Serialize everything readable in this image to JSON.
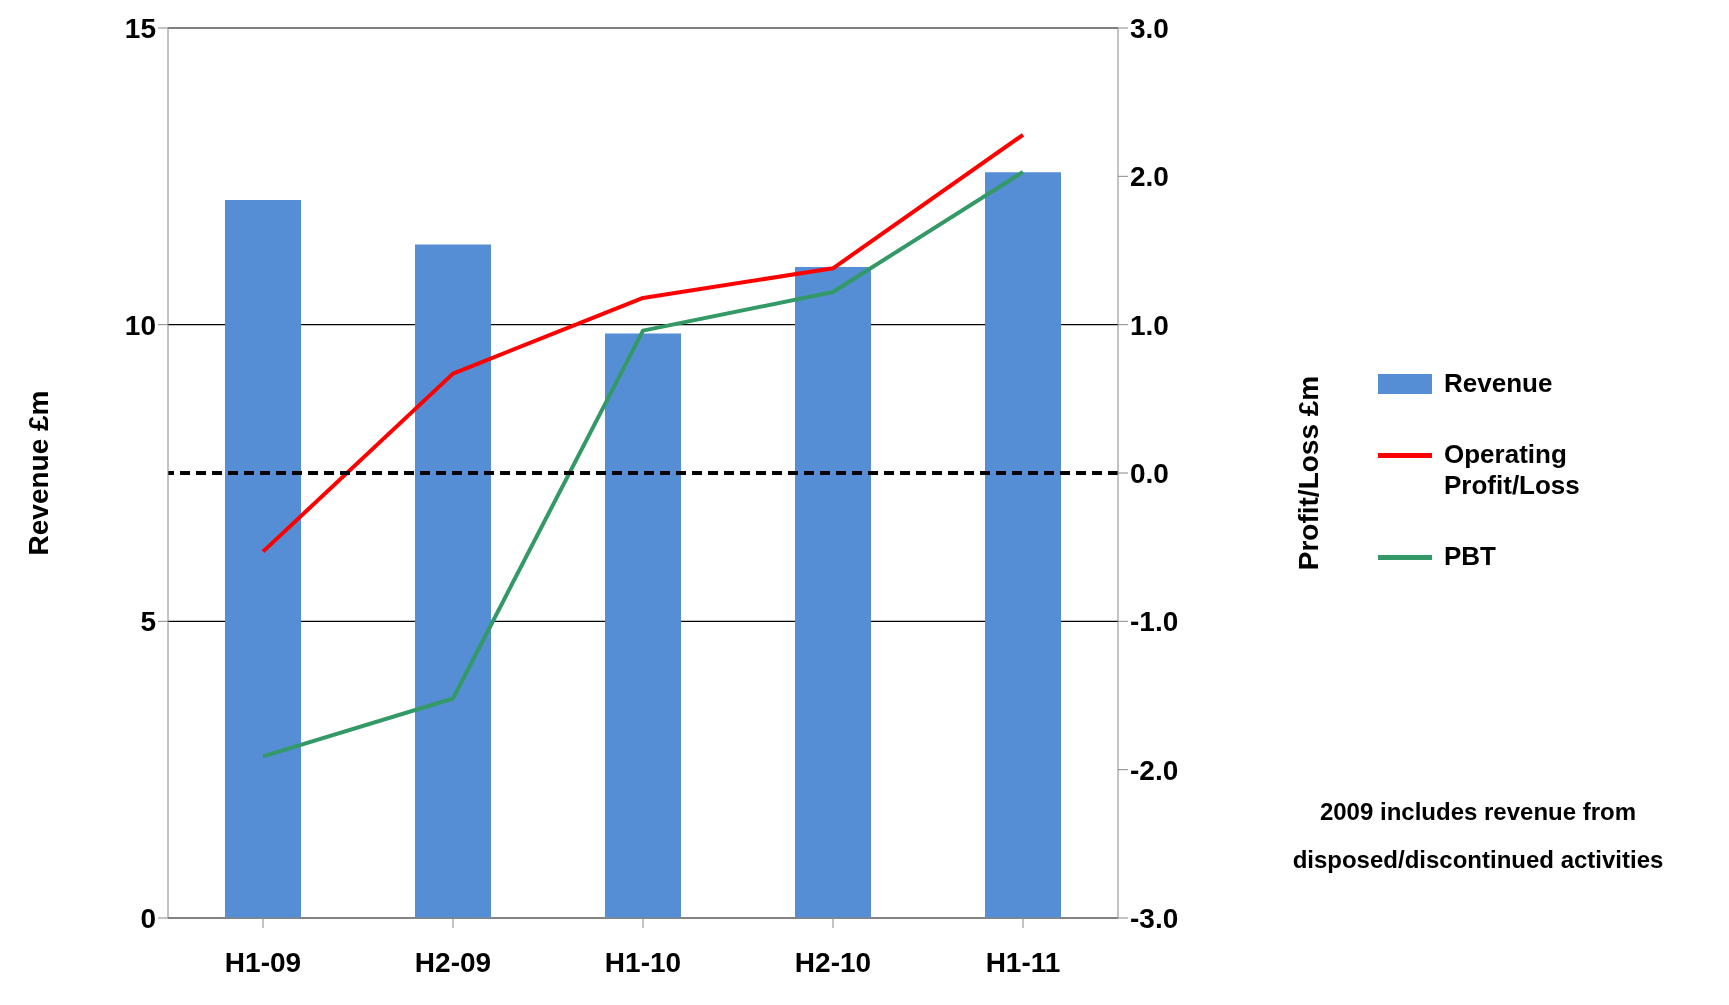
{
  "chart_data": {
    "type": "bar",
    "categories": [
      "H1-09",
      "H2-09",
      "H1-10",
      "H2-10",
      "H1-11"
    ],
    "ylabel": "Revenue  £m",
    "y2label": "Profit/Loss  £m",
    "ylim": [
      0,
      15
    ],
    "yticks": [
      0,
      5,
      10,
      15
    ],
    "y2lim": [
      -3,
      3
    ],
    "y2ticks": [
      {
        "value": -3,
        "label": "-3.0"
      },
      {
        "value": -2,
        "label": "-2.0"
      },
      {
        "value": -1,
        "label": "-1.0"
      },
      {
        "value": 0,
        "label": "0.0"
      },
      {
        "value": 1,
        "label": "1.0"
      },
      {
        "value": 2,
        "label": "2.0"
      },
      {
        "value": 3,
        "label": "3.0"
      }
    ],
    "series": [
      {
        "name": "Revenue",
        "color": "#558ed5",
        "values": [
          12.1,
          11.35,
          9.85,
          10.97,
          12.57
        ]
      },
      {
        "name": "Operating Profit/Loss",
        "type": "line",
        "axis": "y2",
        "color": "#ff0000",
        "values": [
          -0.53,
          0.67,
          1.18,
          1.38,
          2.28
        ]
      },
      {
        "name": "PBT",
        "type": "line",
        "axis": "y2",
        "color": "#339966",
        "values": [
          -1.91,
          -1.52,
          0.96,
          1.22,
          2.03
        ]
      }
    ],
    "ref_lines": [
      {
        "axis": "y2",
        "value": 0,
        "color": "#000000",
        "line_style": "dashed"
      }
    ],
    "grid": "y",
    "legend": "right",
    "marker": "none",
    "line_style": "solid",
    "annotations": [
      "2009 includes revenue from disposed/discontinued activities"
    ]
  }
}
